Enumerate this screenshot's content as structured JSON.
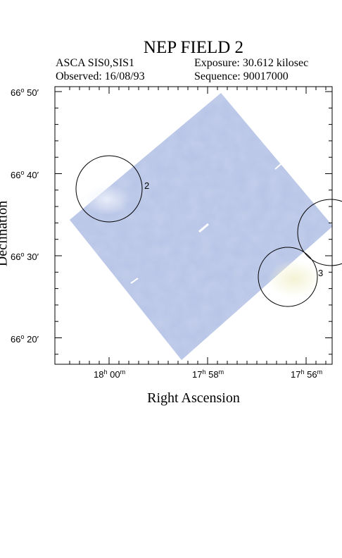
{
  "title": "NEP FIELD 2",
  "instrument": "ASCA SIS0,SIS1",
  "exposure": "Exposure: 30.612 kilosec",
  "observed": "Observed: 16/08/93",
  "sequence": "Sequence: 90017000",
  "x_axis_label": "Right Ascension",
  "y_axis_label": "Declination",
  "dec_ticks": [
    {
      "deg": "66",
      "min": "50"
    },
    {
      "deg": "66",
      "min": "40"
    },
    {
      "deg": "66",
      "min": "30"
    },
    {
      "deg": "66",
      "min": "20"
    }
  ],
  "ra_ticks": [
    {
      "h": "18",
      "m": "00"
    },
    {
      "h": "17",
      "m": "58"
    },
    {
      "h": "17",
      "m": "56"
    }
  ],
  "sources": [
    "2",
    "3"
  ],
  "colors": {
    "field_fill": "#b6c3e6",
    "bright": "#f0f0d0"
  }
}
